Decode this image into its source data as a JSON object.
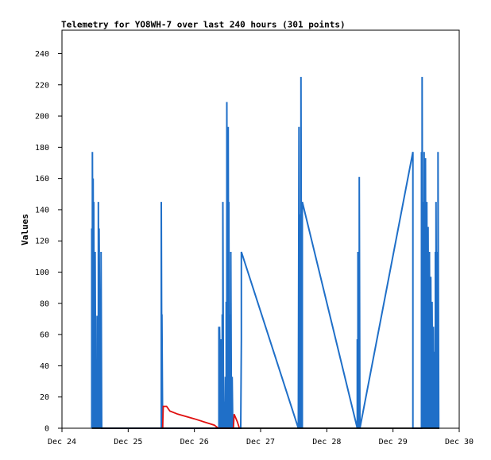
{
  "chart_data": {
    "type": "line",
    "title": "Telemetry for YO8WH-7 over last 240 hours (301 points)",
    "xlabel": "",
    "ylabel": "Values",
    "ylim": [
      0,
      255
    ],
    "xlim": [
      "Dec 24",
      "Dec 30"
    ],
    "x_unit": "days (Dec 24 00:00 = 24.0)",
    "x_ticks": [
      {
        "value": 24,
        "label": "Dec 24"
      },
      {
        "value": 25,
        "label": "Dec 25"
      },
      {
        "value": 26,
        "label": "Dec 26"
      },
      {
        "value": 27,
        "label": "Dec 27"
      },
      {
        "value": 28,
        "label": "Dec 28"
      },
      {
        "value": 29,
        "label": "Dec 29"
      },
      {
        "value": 30,
        "label": "Dec 30"
      }
    ],
    "y_ticks": [
      0,
      20,
      40,
      60,
      80,
      100,
      120,
      140,
      160,
      180,
      200,
      220,
      240
    ],
    "grid": false,
    "series": [
      {
        "color": "#1f6fc8",
        "points": [
          [
            24.45,
            0
          ],
          [
            24.45,
            128
          ],
          [
            24.46,
            0
          ],
          [
            24.46,
            177
          ],
          [
            24.47,
            0
          ],
          [
            24.47,
            160
          ],
          [
            24.48,
            0
          ],
          [
            24.48,
            145
          ],
          [
            24.49,
            0
          ],
          [
            24.49,
            97
          ],
          [
            24.5,
            0
          ],
          [
            24.5,
            113
          ],
          [
            24.51,
            0
          ],
          [
            24.51,
            32
          ],
          [
            24.53,
            0
          ],
          [
            24.53,
            72
          ],
          [
            24.55,
            0
          ],
          [
            24.55,
            145
          ],
          [
            24.56,
            0
          ],
          [
            24.56,
            128
          ],
          [
            24.58,
            0
          ],
          [
            24.58,
            57
          ],
          [
            24.59,
            0
          ],
          [
            24.59,
            113
          ],
          [
            24.6,
            0
          ],
          [
            25.5,
            0
          ],
          [
            25.5,
            145
          ],
          [
            25.51,
            0
          ],
          [
            25.51,
            73
          ],
          [
            25.52,
            0
          ],
          [
            26.37,
            0
          ],
          [
            26.37,
            65
          ],
          [
            26.38,
            0
          ],
          [
            26.38,
            65
          ],
          [
            26.4,
            0
          ],
          [
            26.4,
            57
          ],
          [
            26.42,
            0
          ],
          [
            26.42,
            73
          ],
          [
            26.43,
            0
          ],
          [
            26.43,
            145
          ],
          [
            26.44,
            0
          ],
          [
            26.44,
            33
          ],
          [
            26.45,
            0
          ],
          [
            26.45,
            17
          ],
          [
            26.47,
            0
          ],
          [
            26.47,
            33
          ],
          [
            26.48,
            0
          ],
          [
            26.48,
            81
          ],
          [
            26.49,
            0
          ],
          [
            26.49,
            209
          ],
          [
            26.5,
            0
          ],
          [
            26.5,
            97
          ],
          [
            26.51,
            0
          ],
          [
            26.51,
            193
          ],
          [
            26.52,
            0
          ],
          [
            26.52,
            145
          ],
          [
            26.53,
            0
          ],
          [
            26.53,
            73
          ],
          [
            26.55,
            0
          ],
          [
            26.55,
            113
          ],
          [
            26.56,
            0
          ],
          [
            26.56,
            17
          ],
          [
            26.57,
            0
          ],
          [
            26.57,
            33
          ],
          [
            26.58,
            0
          ],
          [
            26.7,
            0
          ],
          [
            26.71,
            57
          ],
          [
            26.71,
            113
          ],
          [
            27.57,
            0
          ],
          [
            27.58,
            193
          ],
          [
            27.59,
            0
          ],
          [
            27.59,
            40
          ],
          [
            27.6,
            0
          ],
          [
            27.6,
            137
          ],
          [
            27.61,
            0
          ],
          [
            27.61,
            225
          ],
          [
            27.62,
            0
          ],
          [
            27.62,
            113
          ],
          [
            27.63,
            0
          ],
          [
            27.63,
            145
          ],
          [
            28.46,
            0
          ],
          [
            28.46,
            57
          ],
          [
            28.47,
            0
          ],
          [
            28.47,
            113
          ],
          [
            28.48,
            0
          ],
          [
            28.48,
            81
          ],
          [
            28.49,
            0
          ],
          [
            28.49,
            161
          ],
          [
            28.5,
            0
          ],
          [
            29.3,
            177
          ],
          [
            29.3,
            0
          ],
          [
            29.31,
            0
          ],
          [
            29.43,
            0
          ],
          [
            29.43,
            177
          ],
          [
            29.44,
            0
          ],
          [
            29.44,
            225
          ],
          [
            29.45,
            0
          ],
          [
            29.45,
            49
          ],
          [
            29.46,
            0
          ],
          [
            29.46,
            145
          ],
          [
            29.47,
            0
          ],
          [
            29.47,
            177
          ],
          [
            29.48,
            0
          ],
          [
            29.48,
            161
          ],
          [
            29.49,
            0
          ],
          [
            29.49,
            173
          ],
          [
            29.5,
            0
          ],
          [
            29.51,
            145
          ],
          [
            29.52,
            0
          ],
          [
            29.53,
            129
          ],
          [
            29.54,
            0
          ],
          [
            29.55,
            113
          ],
          [
            29.56,
            0
          ],
          [
            29.57,
            97
          ],
          [
            29.58,
            0
          ],
          [
            29.59,
            81
          ],
          [
            29.6,
            0
          ],
          [
            29.61,
            65
          ],
          [
            29.62,
            0
          ],
          [
            29.63,
            49
          ],
          [
            29.64,
            0
          ],
          [
            29.64,
            113
          ],
          [
            29.65,
            0
          ],
          [
            29.65,
            145
          ],
          [
            29.66,
            0
          ],
          [
            29.66,
            113
          ],
          [
            29.67,
            0
          ],
          [
            29.67,
            33
          ],
          [
            29.68,
            0
          ],
          [
            29.68,
            177
          ],
          [
            29.69,
            0
          ],
          [
            29.69,
            0
          ]
        ]
      },
      {
        "color": "#e01010",
        "points": [
          [
            25.52,
            0
          ],
          [
            25.53,
            14
          ],
          [
            25.58,
            14
          ],
          [
            25.63,
            11
          ],
          [
            25.75,
            9
          ],
          [
            26.0,
            6
          ],
          [
            26.3,
            2
          ],
          [
            26.36,
            0
          ],
          [
            26.59,
            0
          ],
          [
            26.6,
            9
          ],
          [
            26.65,
            4
          ],
          [
            26.68,
            0
          ]
        ]
      },
      {
        "color": "#000000",
        "points": [
          [
            24.45,
            0
          ],
          [
            29.7,
            0
          ]
        ]
      }
    ]
  }
}
